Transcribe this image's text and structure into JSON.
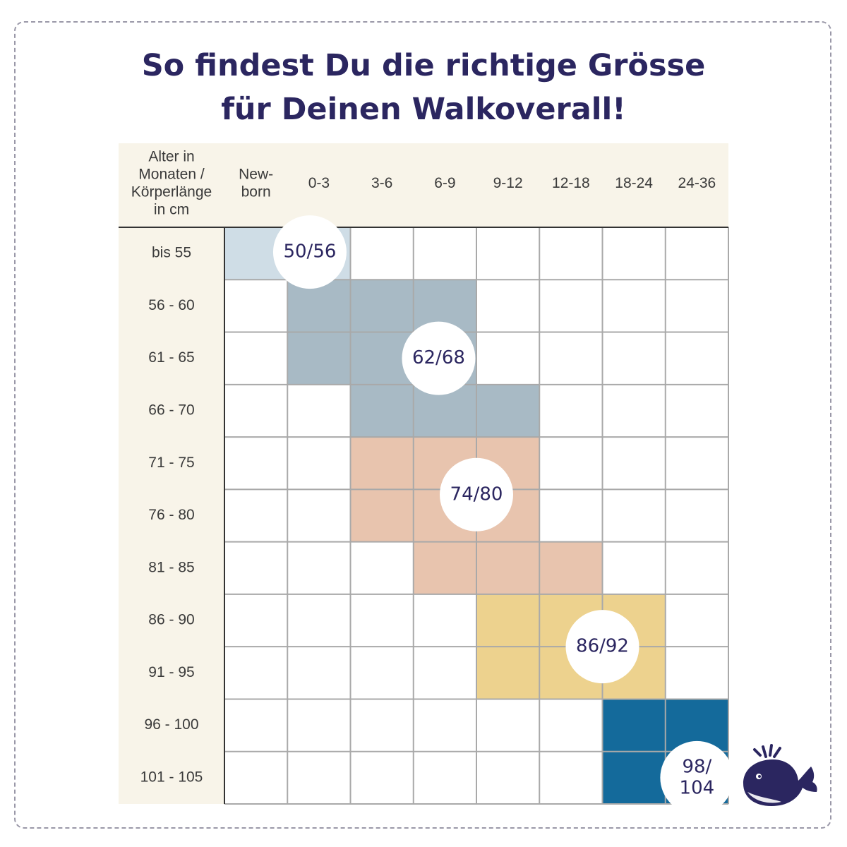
{
  "title": {
    "line1": "So findest Du die richtige Grösse",
    "line2": "für Deinen Walkoverall!"
  },
  "colors": {
    "title": "#2b2660",
    "header_bg": "#f8f4e9",
    "grid": "#a9a9a9",
    "size_50_56": "#cfdde6",
    "size_62_68": "#a8bac5",
    "size_74_80": "#e8c4ae",
    "size_86_92": "#edd28e",
    "size_98_104": "#146a9b"
  },
  "table": {
    "corner_label": [
      "Alter in",
      "Monaten /",
      "Körperlänge",
      "in cm"
    ],
    "age_columns": [
      [
        "New-",
        "born"
      ],
      [
        "0-3"
      ],
      [
        "3-6"
      ],
      [
        "6-9"
      ],
      [
        "9-12"
      ],
      [
        "12-18"
      ],
      [
        "18-24"
      ],
      [
        "24-36"
      ]
    ],
    "length_rows": [
      "bis 55",
      "56 - 60",
      "61 - 65",
      "66 - 70",
      "71 - 75",
      "76 - 80",
      "81 - 85",
      "86 - 90",
      "91 - 95",
      "96 - 100",
      "101 - 105"
    ],
    "sizes": [
      {
        "label": [
          "50/56"
        ],
        "color": "#cfdde6",
        "cells": [
          [
            0,
            0
          ],
          [
            0,
            1
          ]
        ],
        "bubble_cell": [
          0,
          0.9
        ]
      },
      {
        "label": [
          "62/68"
        ],
        "color": "#a8bac5",
        "cells": [
          [
            1,
            1
          ],
          [
            1,
            2
          ],
          [
            1,
            3
          ],
          [
            2,
            1
          ],
          [
            2,
            2
          ],
          [
            2,
            3
          ],
          [
            3,
            2
          ],
          [
            3,
            3
          ],
          [
            3,
            4
          ]
        ],
        "bubble_cell": [
          2.0,
          2.9
        ]
      },
      {
        "label": [
          "74/80"
        ],
        "color": "#e8c4ae",
        "cells": [
          [
            4,
            2
          ],
          [
            4,
            3
          ],
          [
            4,
            4
          ],
          [
            5,
            2
          ],
          [
            5,
            3
          ],
          [
            5,
            4
          ],
          [
            6,
            3
          ],
          [
            6,
            4
          ],
          [
            6,
            5
          ]
        ],
        "bubble_cell": [
          4.6,
          3.5
        ]
      },
      {
        "label": [
          "86/92"
        ],
        "color": "#edd28e",
        "cells": [
          [
            7,
            4
          ],
          [
            7,
            5
          ],
          [
            7,
            6
          ],
          [
            8,
            4
          ],
          [
            8,
            5
          ],
          [
            8,
            6
          ]
        ],
        "bubble_cell": [
          7.5,
          5.5
        ]
      },
      {
        "label": [
          "98/",
          "104"
        ],
        "color": "#146a9b",
        "cells": [
          [
            9,
            6
          ],
          [
            9,
            7
          ],
          [
            10,
            6
          ],
          [
            10,
            7
          ]
        ],
        "bubble_cell": [
          10.0,
          7.0
        ]
      }
    ]
  },
  "logo": {
    "icon": "whale-icon"
  }
}
